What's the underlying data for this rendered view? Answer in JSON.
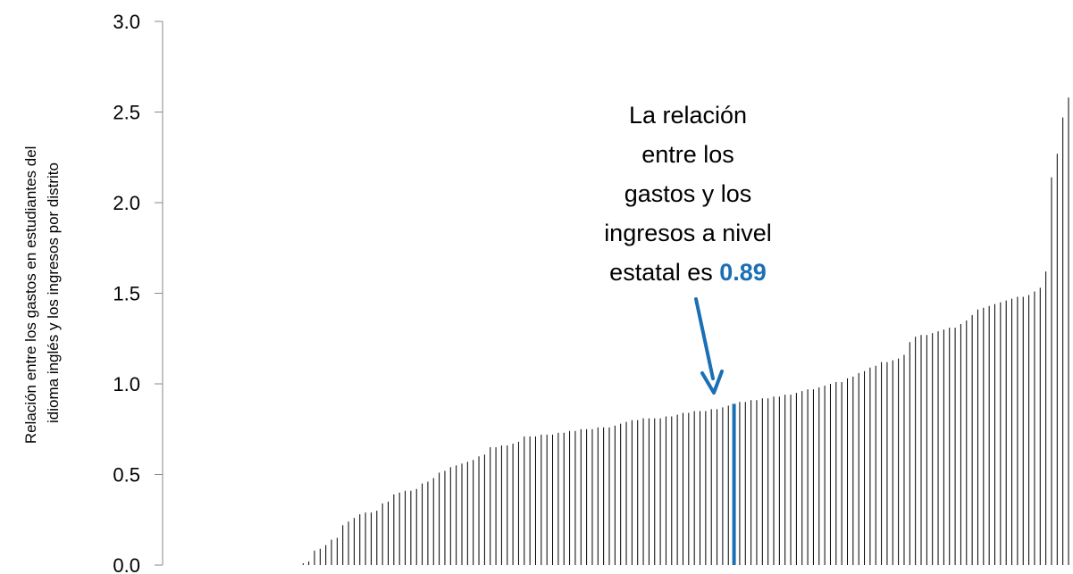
{
  "chart_data": {
    "type": "bar",
    "title": "",
    "xlabel": "",
    "ylabel": [
      "Relación entre los gastos en estudiantes del",
      "idioma inglés y los ingresos por distrito"
    ],
    "ylim": [
      0,
      3
    ],
    "yticks": [
      "0.0",
      "0.5",
      "1.0",
      "1.5",
      "2.0",
      "2.5",
      "3.0"
    ],
    "grid": false,
    "bar_color": "#000000",
    "highlight_color": "#1a6fb5",
    "highlight_value": 0.89,
    "annotation": {
      "lines": [
        "La relación",
        "entre los",
        "gastos y los",
        "ingresos a nivel"
      ],
      "last_line_prefix": "estatal es ",
      "value_text": "0.89"
    },
    "series": [
      {
        "values": [
          0,
          0,
          0,
          0,
          0,
          0,
          0,
          0,
          0,
          0,
          0,
          0,
          0,
          0,
          0,
          0,
          0,
          0,
          0,
          0,
          0,
          0,
          0,
          0,
          0.01,
          0.02,
          0.08,
          0.09,
          0.11,
          0.14,
          0.15,
          0.22,
          0.24,
          0.26,
          0.28,
          0.29,
          0.29,
          0.3,
          0.34,
          0.35,
          0.39,
          0.4,
          0.41,
          0.41,
          0.42,
          0.45,
          0.46,
          0.48,
          0.51,
          0.52,
          0.54,
          0.55,
          0.56,
          0.57,
          0.58,
          0.6,
          0.61,
          0.65,
          0.65,
          0.66,
          0.66,
          0.67,
          0.68,
          0.71,
          0.71,
          0.71,
          0.72,
          0.72,
          0.72,
          0.73,
          0.73,
          0.74,
          0.74,
          0.75,
          0.75,
          0.75,
          0.76,
          0.76,
          0.76,
          0.77,
          0.78,
          0.79,
          0.8,
          0.8,
          0.81,
          0.81,
          0.81,
          0.81,
          0.82,
          0.82,
          0.83,
          0.84,
          0.84,
          0.85,
          0.85,
          0.85,
          0.86,
          0.86,
          0.87,
          0.88,
          0.89,
          0.9,
          0.9,
          0.91,
          0.91,
          0.92,
          0.92,
          0.93,
          0.93,
          0.94,
          0.94,
          0.95,
          0.96,
          0.97,
          0.97,
          0.98,
          0.99,
          1.0,
          1.01,
          1.01,
          1.03,
          1.04,
          1.06,
          1.07,
          1.09,
          1.1,
          1.12,
          1.12,
          1.13,
          1.14,
          1.16,
          1.23,
          1.26,
          1.27,
          1.27,
          1.28,
          1.29,
          1.3,
          1.31,
          1.31,
          1.33,
          1.35,
          1.38,
          1.41,
          1.42,
          1.43,
          1.44,
          1.45,
          1.46,
          1.47,
          1.48,
          1.48,
          1.49,
          1.51,
          1.53,
          1.62,
          2.14,
          2.27,
          2.47,
          2.58
        ]
      }
    ],
    "highlight_index": 100
  }
}
